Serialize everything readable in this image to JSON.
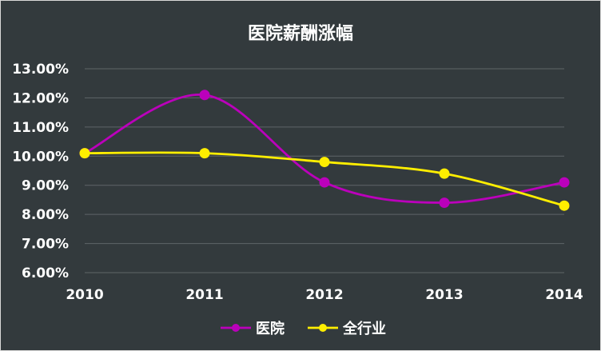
{
  "chart_data": {
    "type": "line",
    "title": "医院薪酬涨幅",
    "categories": [
      "2010",
      "2011",
      "2012",
      "2013",
      "2014"
    ],
    "series": [
      {
        "name": "医院",
        "color": "#bb00bb",
        "values": [
          0.101,
          0.121,
          0.091,
          0.084,
          0.091
        ]
      },
      {
        "name": "全行业",
        "color": "#ffee00",
        "values": [
          0.101,
          0.101,
          0.098,
          0.094,
          0.083
        ]
      }
    ],
    "ylim": [
      0.06,
      0.13
    ],
    "y_ticks": [
      "6.00%",
      "7.00%",
      "8.00%",
      "9.00%",
      "10.00%",
      "11.00%",
      "12.00%",
      "13.00%"
    ],
    "grid": true,
    "smooth": true,
    "legend_position": "bottom",
    "background_color": "#333a3d",
    "gridline_color": "#5f6568"
  }
}
